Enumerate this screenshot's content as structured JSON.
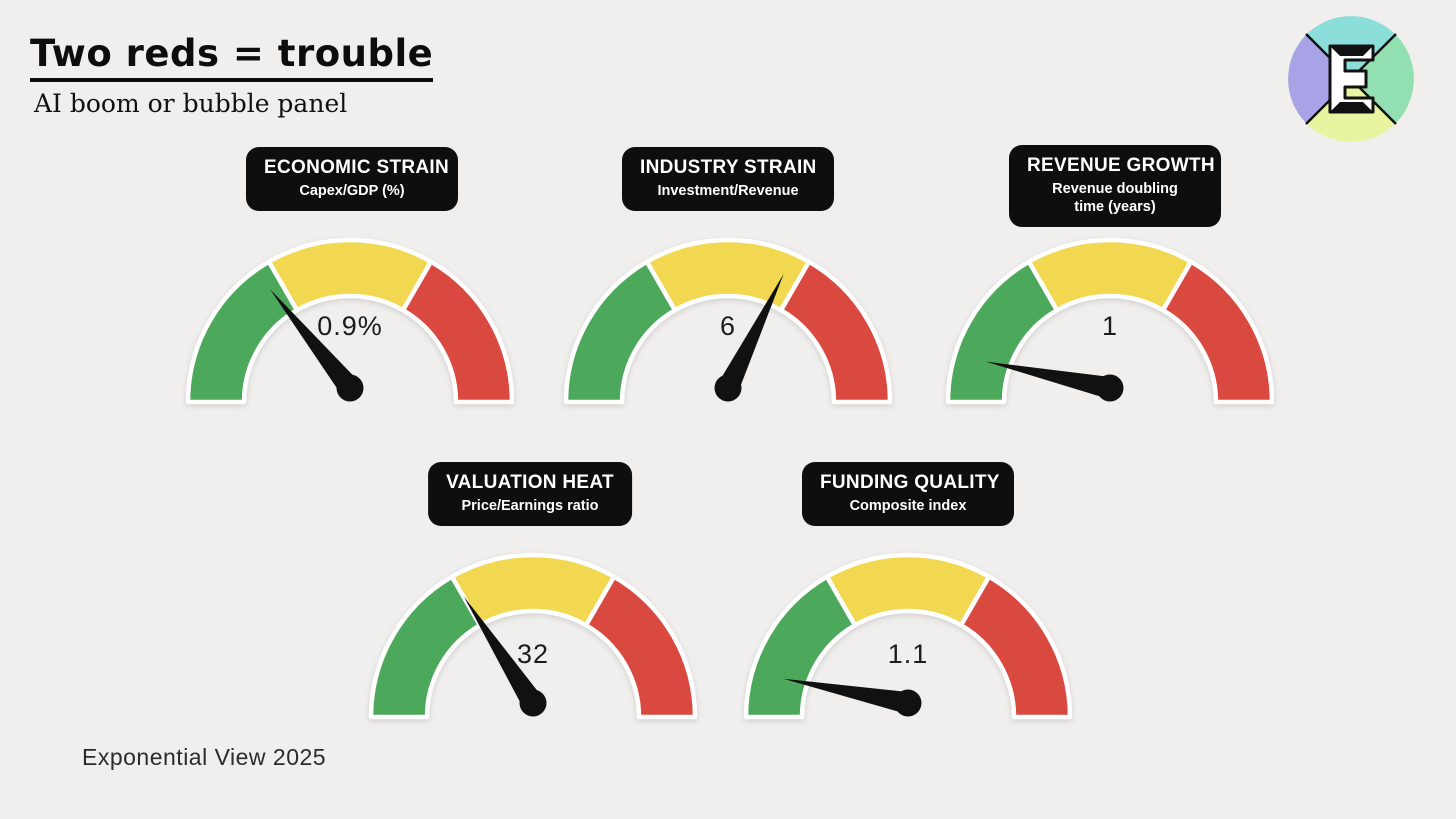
{
  "header": {
    "title": "Two reds = trouble",
    "subtitle": "AI boom or bubble panel"
  },
  "footer": {
    "credit": "Exponential View 2025"
  },
  "logo": {
    "letter": "E",
    "colors": {
      "top": "#8bdeda",
      "left": "#a7a3e6",
      "right": "#92e0b1",
      "bottom": "#e8f4a0"
    }
  },
  "palette": {
    "background": "#f0efed",
    "green": "#4ca85a",
    "yellow": "#f2d750",
    "red": "#d9493f",
    "badge_black": "#0e0e0e",
    "needle_black": "#111111",
    "arc_outline": "#ffffff"
  },
  "chart_data": [
    {
      "type": "gauge",
      "title": "ECONOMIC STRAIN",
      "subtitle": "Capex/GDP (%)",
      "value": 0.9,
      "value_label": "0.9%",
      "needle_angle_deg": 129,
      "angle_span_deg": [
        0,
        180
      ],
      "segments": [
        {
          "name": "green",
          "from_deg": 180,
          "to_deg": 120,
          "color": "#4ca85a"
        },
        {
          "name": "yellow",
          "from_deg": 120,
          "to_deg": 60,
          "color": "#f2d750"
        },
        {
          "name": "red",
          "from_deg": 60,
          "to_deg": 0,
          "color": "#d9493f"
        }
      ]
    },
    {
      "type": "gauge",
      "title": "INDUSTRY STRAIN",
      "subtitle": "Investment/Revenue",
      "value": 6,
      "value_label": "6",
      "needle_angle_deg": 64,
      "angle_span_deg": [
        0,
        180
      ],
      "segments": [
        {
          "name": "green",
          "from_deg": 180,
          "to_deg": 120,
          "color": "#4ca85a"
        },
        {
          "name": "yellow",
          "from_deg": 120,
          "to_deg": 60,
          "color": "#f2d750"
        },
        {
          "name": "red",
          "from_deg": 60,
          "to_deg": 0,
          "color": "#d9493f"
        }
      ]
    },
    {
      "type": "gauge",
      "title": "REVENUE GROWTH",
      "subtitle": "Revenue doubling\ntime (years)",
      "value": 1,
      "value_label": "1",
      "needle_angle_deg": 168,
      "angle_span_deg": [
        0,
        180
      ],
      "segments": [
        {
          "name": "green",
          "from_deg": 180,
          "to_deg": 120,
          "color": "#4ca85a"
        },
        {
          "name": "yellow",
          "from_deg": 120,
          "to_deg": 60,
          "color": "#f2d750"
        },
        {
          "name": "red",
          "from_deg": 60,
          "to_deg": 0,
          "color": "#d9493f"
        }
      ]
    },
    {
      "type": "gauge",
      "title": "VALUATION HEAT",
      "subtitle": "Price/Earnings ratio",
      "value": 32,
      "value_label": "32",
      "needle_angle_deg": 123,
      "angle_span_deg": [
        0,
        180
      ],
      "segments": [
        {
          "name": "green",
          "from_deg": 180,
          "to_deg": 120,
          "color": "#4ca85a"
        },
        {
          "name": "yellow",
          "from_deg": 120,
          "to_deg": 60,
          "color": "#f2d750"
        },
        {
          "name": "red",
          "from_deg": 60,
          "to_deg": 0,
          "color": "#d9493f"
        }
      ]
    },
    {
      "type": "gauge",
      "title": "FUNDING QUALITY",
      "subtitle": "Composite index",
      "value": 1.1,
      "value_label": "1.1",
      "needle_angle_deg": 169,
      "angle_span_deg": [
        0,
        180
      ],
      "segments": [
        {
          "name": "green",
          "from_deg": 180,
          "to_deg": 120,
          "color": "#4ca85a"
        },
        {
          "name": "yellow",
          "from_deg": 120,
          "to_deg": 60,
          "color": "#f2d750"
        },
        {
          "name": "red",
          "from_deg": 60,
          "to_deg": 0,
          "color": "#d9493f"
        }
      ]
    }
  ]
}
